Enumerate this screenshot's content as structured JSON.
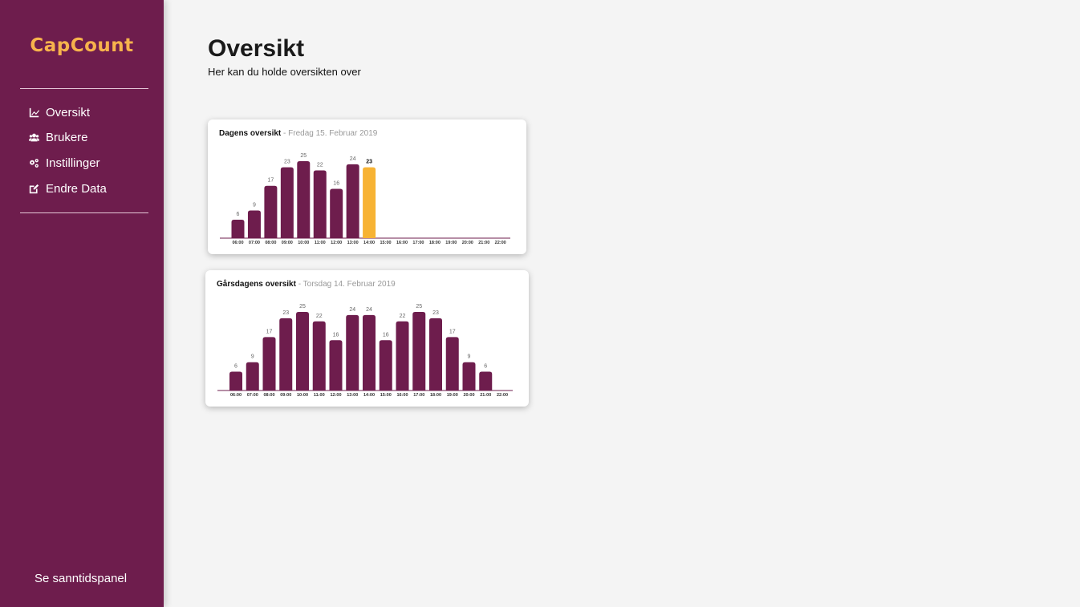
{
  "app": {
    "logo": "CapCount"
  },
  "sidebar": {
    "items": [
      {
        "label": "Oversikt",
        "icon": "chart-line-icon"
      },
      {
        "label": "Brukere",
        "icon": "users-icon"
      },
      {
        "label": "Instillinger",
        "icon": "gears-icon"
      },
      {
        "label": "Endre Data",
        "icon": "edit-icon"
      }
    ],
    "bottom_link": "Se sanntidspanel"
  },
  "header": {
    "title": "Oversikt",
    "subtitle": "Her kan du holde oversikten over"
  },
  "colors": {
    "sidebar": "#6e1d4d",
    "bar": "#6e1d4d",
    "highlight": "#f7b334",
    "logo": "#f7b34c"
  },
  "cards": [
    {
      "title": "Dagens oversikt",
      "date": "- Fredag 15. Februar 2019"
    },
    {
      "title": "Gårsdagens oversikt",
      "date": "- Torsdag 14. Februar 2019"
    }
  ],
  "chart_data": [
    {
      "type": "bar",
      "categories": [
        "06:00",
        "07:00",
        "08:00",
        "09:00",
        "10:00",
        "11:00",
        "12:00",
        "13:00",
        "14:00",
        "15:00",
        "16:00",
        "17:00",
        "18:00",
        "19:00",
        "20:00",
        "21:00",
        "22:00"
      ],
      "values": [
        6,
        9,
        17,
        23,
        25,
        22,
        16,
        24,
        23,
        null,
        null,
        null,
        null,
        null,
        null,
        null,
        null
      ],
      "highlight_index": 8,
      "ylim": [
        0,
        25
      ]
    },
    {
      "type": "bar",
      "categories": [
        "06:00",
        "07:00",
        "08:00",
        "09:00",
        "10:00",
        "11:00",
        "12:00",
        "13:00",
        "14:00",
        "15:00",
        "16:00",
        "17:00",
        "18:00",
        "19:00",
        "20:00",
        "21:00",
        "22:00"
      ],
      "values": [
        6,
        9,
        17,
        23,
        25,
        22,
        16,
        24,
        24,
        16,
        22,
        25,
        23,
        17,
        9,
        6,
        null
      ],
      "ylim": [
        0,
        25
      ]
    }
  ]
}
